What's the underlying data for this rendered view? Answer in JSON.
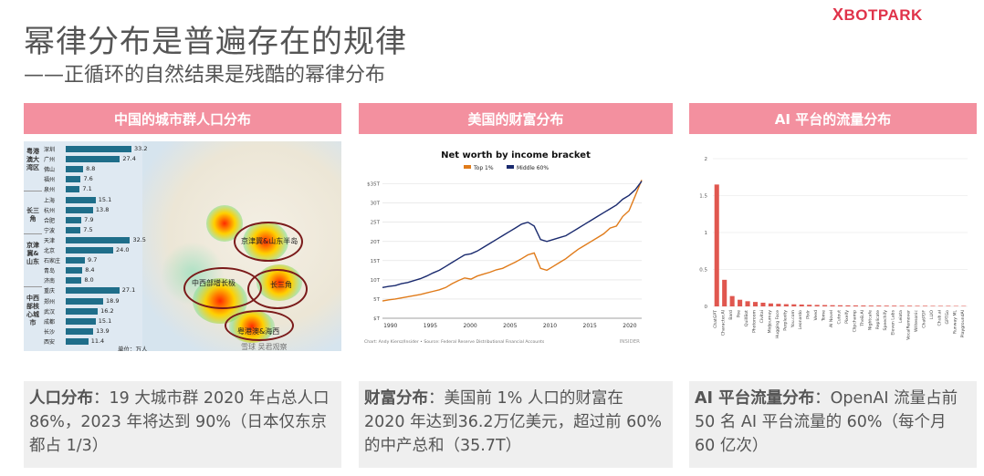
{
  "title": "幂律分布是普遍存在的规律",
  "subtitle": "——正循环的自然结果是残酷的幂律分布",
  "logo": {
    "prefix": "X",
    "text": "BOTPARK"
  },
  "panels": [
    {
      "header": "中国的城市群人口分布"
    },
    {
      "header": "美国的财富分布"
    },
    {
      "header": "AI 平台的流量分布"
    }
  ],
  "cards": [
    {
      "bold": "人口分布",
      "text": "：19 大城市群 2020 年占总人口 86%，2023 年将达到 90%（日本仅东京都占 1/3）"
    },
    {
      "bold": "财富分布",
      "text": "：美国前 1% 人口的财富在 2020 年达到36.2万亿美元，超过前 60%的中产总和（35.7T）"
    },
    {
      "bold": "AI 平台流量分布",
      "text": "：OpenAI 流量占前 50 名 AI 平台流量的 60%（每个月 60 亿次）"
    }
  ],
  "map": {
    "groups": [
      {
        "label": "粤港澳大湾区"
      },
      {
        "label": "长三角"
      },
      {
        "label": "京津冀&山东"
      },
      {
        "label": "中西部核心城市"
      }
    ],
    "cities": [
      {
        "name": "深圳",
        "value": "33.2"
      },
      {
        "name": "广州",
        "value": "27.4"
      },
      {
        "name": "佛山",
        "value": "8.8"
      },
      {
        "name": "福州",
        "value": "7.6"
      },
      {
        "name": "泉州",
        "value": "7.1"
      },
      {
        "name": "上海",
        "value": "15.1"
      },
      {
        "name": "杭州",
        "value": "13.8"
      },
      {
        "name": "合肥",
        "value": "7.9"
      },
      {
        "name": "宁波",
        "value": "7.5"
      },
      {
        "name": "天津",
        "value": "32.5"
      },
      {
        "name": "北京",
        "value": "24.0"
      },
      {
        "name": "石家庄",
        "value": "9.7"
      },
      {
        "name": "青岛",
        "value": "8.4"
      },
      {
        "name": "济南",
        "value": "8.0"
      },
      {
        "name": "重庆",
        "value": "27.1"
      },
      {
        "name": "郑州",
        "value": "18.9"
      },
      {
        "name": "武汉",
        "value": "16.2"
      },
      {
        "name": "成都",
        "value": "15.1"
      },
      {
        "name": "长沙",
        "value": "13.9"
      },
      {
        "name": "西安",
        "value": "11.4"
      }
    ],
    "region_labels": [
      "京津冀&山东半岛",
      "中西部增长极",
      "长三角",
      "粤港澳&海西"
    ],
    "unit": "单位：万人",
    "watermark": "雪球 吴君观察"
  },
  "chart_data": [
    {
      "type": "line",
      "title": "Net worth by income bracket",
      "series": [
        {
          "name": "Top 1%",
          "color": "#e07b1a",
          "values": [
            4.5,
            4.8,
            5.0,
            5.3,
            5.6,
            5.9,
            6.2,
            6.6,
            7.0,
            7.4,
            8.0,
            9.0,
            9.8,
            10.5,
            10.2,
            11.0,
            11.5,
            12.0,
            12.6,
            13.0,
            13.8,
            14.6,
            15.5,
            16.5,
            17.0,
            13.0,
            12.5,
            13.5,
            14.5,
            15.5,
            16.8,
            18.0,
            19.0,
            20.0,
            21.0,
            22.0,
            23.5,
            24.0,
            26.5,
            28.0,
            32.0,
            36.0
          ]
        },
        {
          "name": "Middle 60%",
          "color": "#1a2a6e",
          "values": [
            8.0,
            8.3,
            8.5,
            9.0,
            9.3,
            9.8,
            10.3,
            11.0,
            11.8,
            12.5,
            13.5,
            14.5,
            15.5,
            16.5,
            16.8,
            17.5,
            18.5,
            19.5,
            20.5,
            21.5,
            22.5,
            23.5,
            24.5,
            25.0,
            24.0,
            20.5,
            20.0,
            20.5,
            21.0,
            21.5,
            22.5,
            23.5,
            24.5,
            25.5,
            26.5,
            27.5,
            28.5,
            29.5,
            31.0,
            32.0,
            33.5,
            35.7
          ]
        }
      ],
      "x_ticks": [
        "1990",
        "1995",
        "2000",
        "2005",
        "2010",
        "2015",
        "2020"
      ],
      "y_ticks": [
        "$T",
        "5T",
        "10T",
        "15T",
        "20T",
        "25T",
        "30T",
        "$35T"
      ],
      "ylim": [
        0,
        38
      ],
      "source": "Chart: Andy Kiersz/Insider • Source: Federal Reserve Distributional Financial Accounts",
      "brand": "INSIDER",
      "legend": "top-left"
    },
    {
      "type": "bar",
      "categories": [
        "ChatGPT",
        "Character.AI",
        "Bard",
        "Poe",
        "QuillBot",
        "Photoroom",
        "Civitai",
        "Midjourney",
        "Hugging Face",
        "Perplexity",
        "You.com",
        "Leonardo",
        "Pixlr",
        "Veed",
        "Tome",
        "AI Novel",
        "Cutout",
        "Pixelfy",
        "Clipchamp",
        "TheB.AI",
        "Nightcafe",
        "Replicate",
        "Speechify",
        "Eleven Labs",
        "Leiata",
        "VocalRemover",
        "Writesonic",
        "ChatPDF",
        "LLIO",
        "Chub.ai",
        "GPTGo",
        "Runway ML",
        "PlaygroundAI"
      ],
      "values": [
        1.65,
        0.36,
        0.14,
        0.09,
        0.07,
        0.06,
        0.05,
        0.04,
        0.035,
        0.03,
        0.028,
        0.025,
        0.022,
        0.02,
        0.018,
        0.016,
        0.015,
        0.014,
        0.013,
        0.012,
        0.011,
        0.011,
        0.01,
        0.01,
        0.009,
        0.009,
        0.008,
        0.008,
        0.007,
        0.007,
        0.007,
        0.006,
        0.006
      ],
      "y_ticks": [
        "0",
        "0.5",
        "1",
        "1.5",
        "2"
      ],
      "ylim": [
        0,
        2
      ],
      "color": "#e0574f"
    }
  ]
}
